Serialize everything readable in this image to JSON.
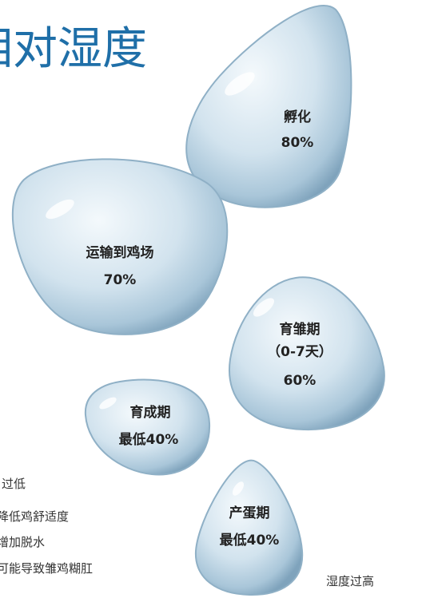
{
  "title": "相对湿度",
  "drops": [
    {
      "label": "孵化",
      "value": "80%"
    },
    {
      "label": "运输到鸡场",
      "value": "70%"
    },
    {
      "label": "育雏期",
      "sublabel": "（0-7天）",
      "value": "60%"
    },
    {
      "label": "育成期",
      "value": "最低40%"
    },
    {
      "label": "产蛋期",
      "value": "最低40%"
    }
  ],
  "low_humidity": {
    "heading": "过低",
    "items": [
      "降低鸡舒适度",
      "增加脱水",
      "可能导致雏鸡糊肛"
    ]
  },
  "high_humidity": {
    "heading": "湿度过高"
  }
}
